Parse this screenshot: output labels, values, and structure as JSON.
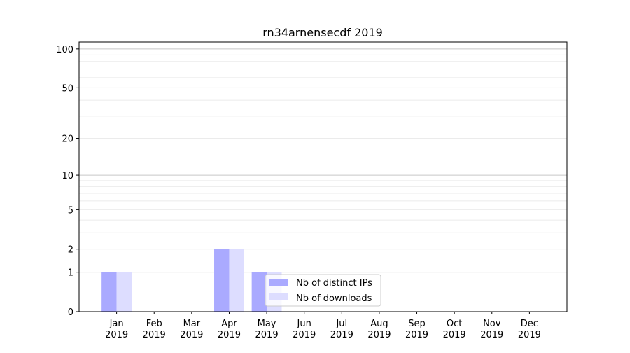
{
  "chart_data": {
    "type": "bar",
    "title": "rn34arnensecdf 2019",
    "xlabel": "",
    "ylabel": "",
    "yscale": "log1p",
    "ylim": [
      0,
      113
    ],
    "xlim": [
      -1,
      12
    ],
    "grid": true,
    "legend_position": "lower-center",
    "categories": [
      {
        "month": "Jan",
        "year": "2019"
      },
      {
        "month": "Feb",
        "year": "2019"
      },
      {
        "month": "Mar",
        "year": "2019"
      },
      {
        "month": "Apr",
        "year": "2019"
      },
      {
        "month": "May",
        "year": "2019"
      },
      {
        "month": "Jun",
        "year": "2019"
      },
      {
        "month": "Jul",
        "year": "2019"
      },
      {
        "month": "Aug",
        "year": "2019"
      },
      {
        "month": "Sep",
        "year": "2019"
      },
      {
        "month": "Oct",
        "year": "2019"
      },
      {
        "month": "Nov",
        "year": "2019"
      },
      {
        "month": "Dec",
        "year": "2019"
      }
    ],
    "yticks": [
      0,
      1,
      2,
      5,
      10,
      20,
      50,
      100
    ],
    "ytick_labels": [
      "0",
      "1",
      "2",
      "5",
      "10",
      "20",
      "50",
      "100"
    ],
    "major_grid": [
      1,
      10,
      100
    ],
    "minor_grid": [
      2,
      3,
      4,
      5,
      6,
      7,
      8,
      9,
      20,
      30,
      40,
      50,
      60,
      70,
      80,
      90
    ],
    "series": [
      {
        "name": "Nb of distinct IPs",
        "color": "#aaaaff",
        "values": [
          1,
          0,
          0,
          2,
          1,
          0,
          0,
          0,
          0,
          0,
          0,
          0
        ]
      },
      {
        "name": "Nb of downloads",
        "color": "#ddddff",
        "values": [
          1,
          0,
          0,
          2,
          1,
          0,
          0,
          0,
          0,
          0,
          0,
          0
        ]
      }
    ]
  }
}
